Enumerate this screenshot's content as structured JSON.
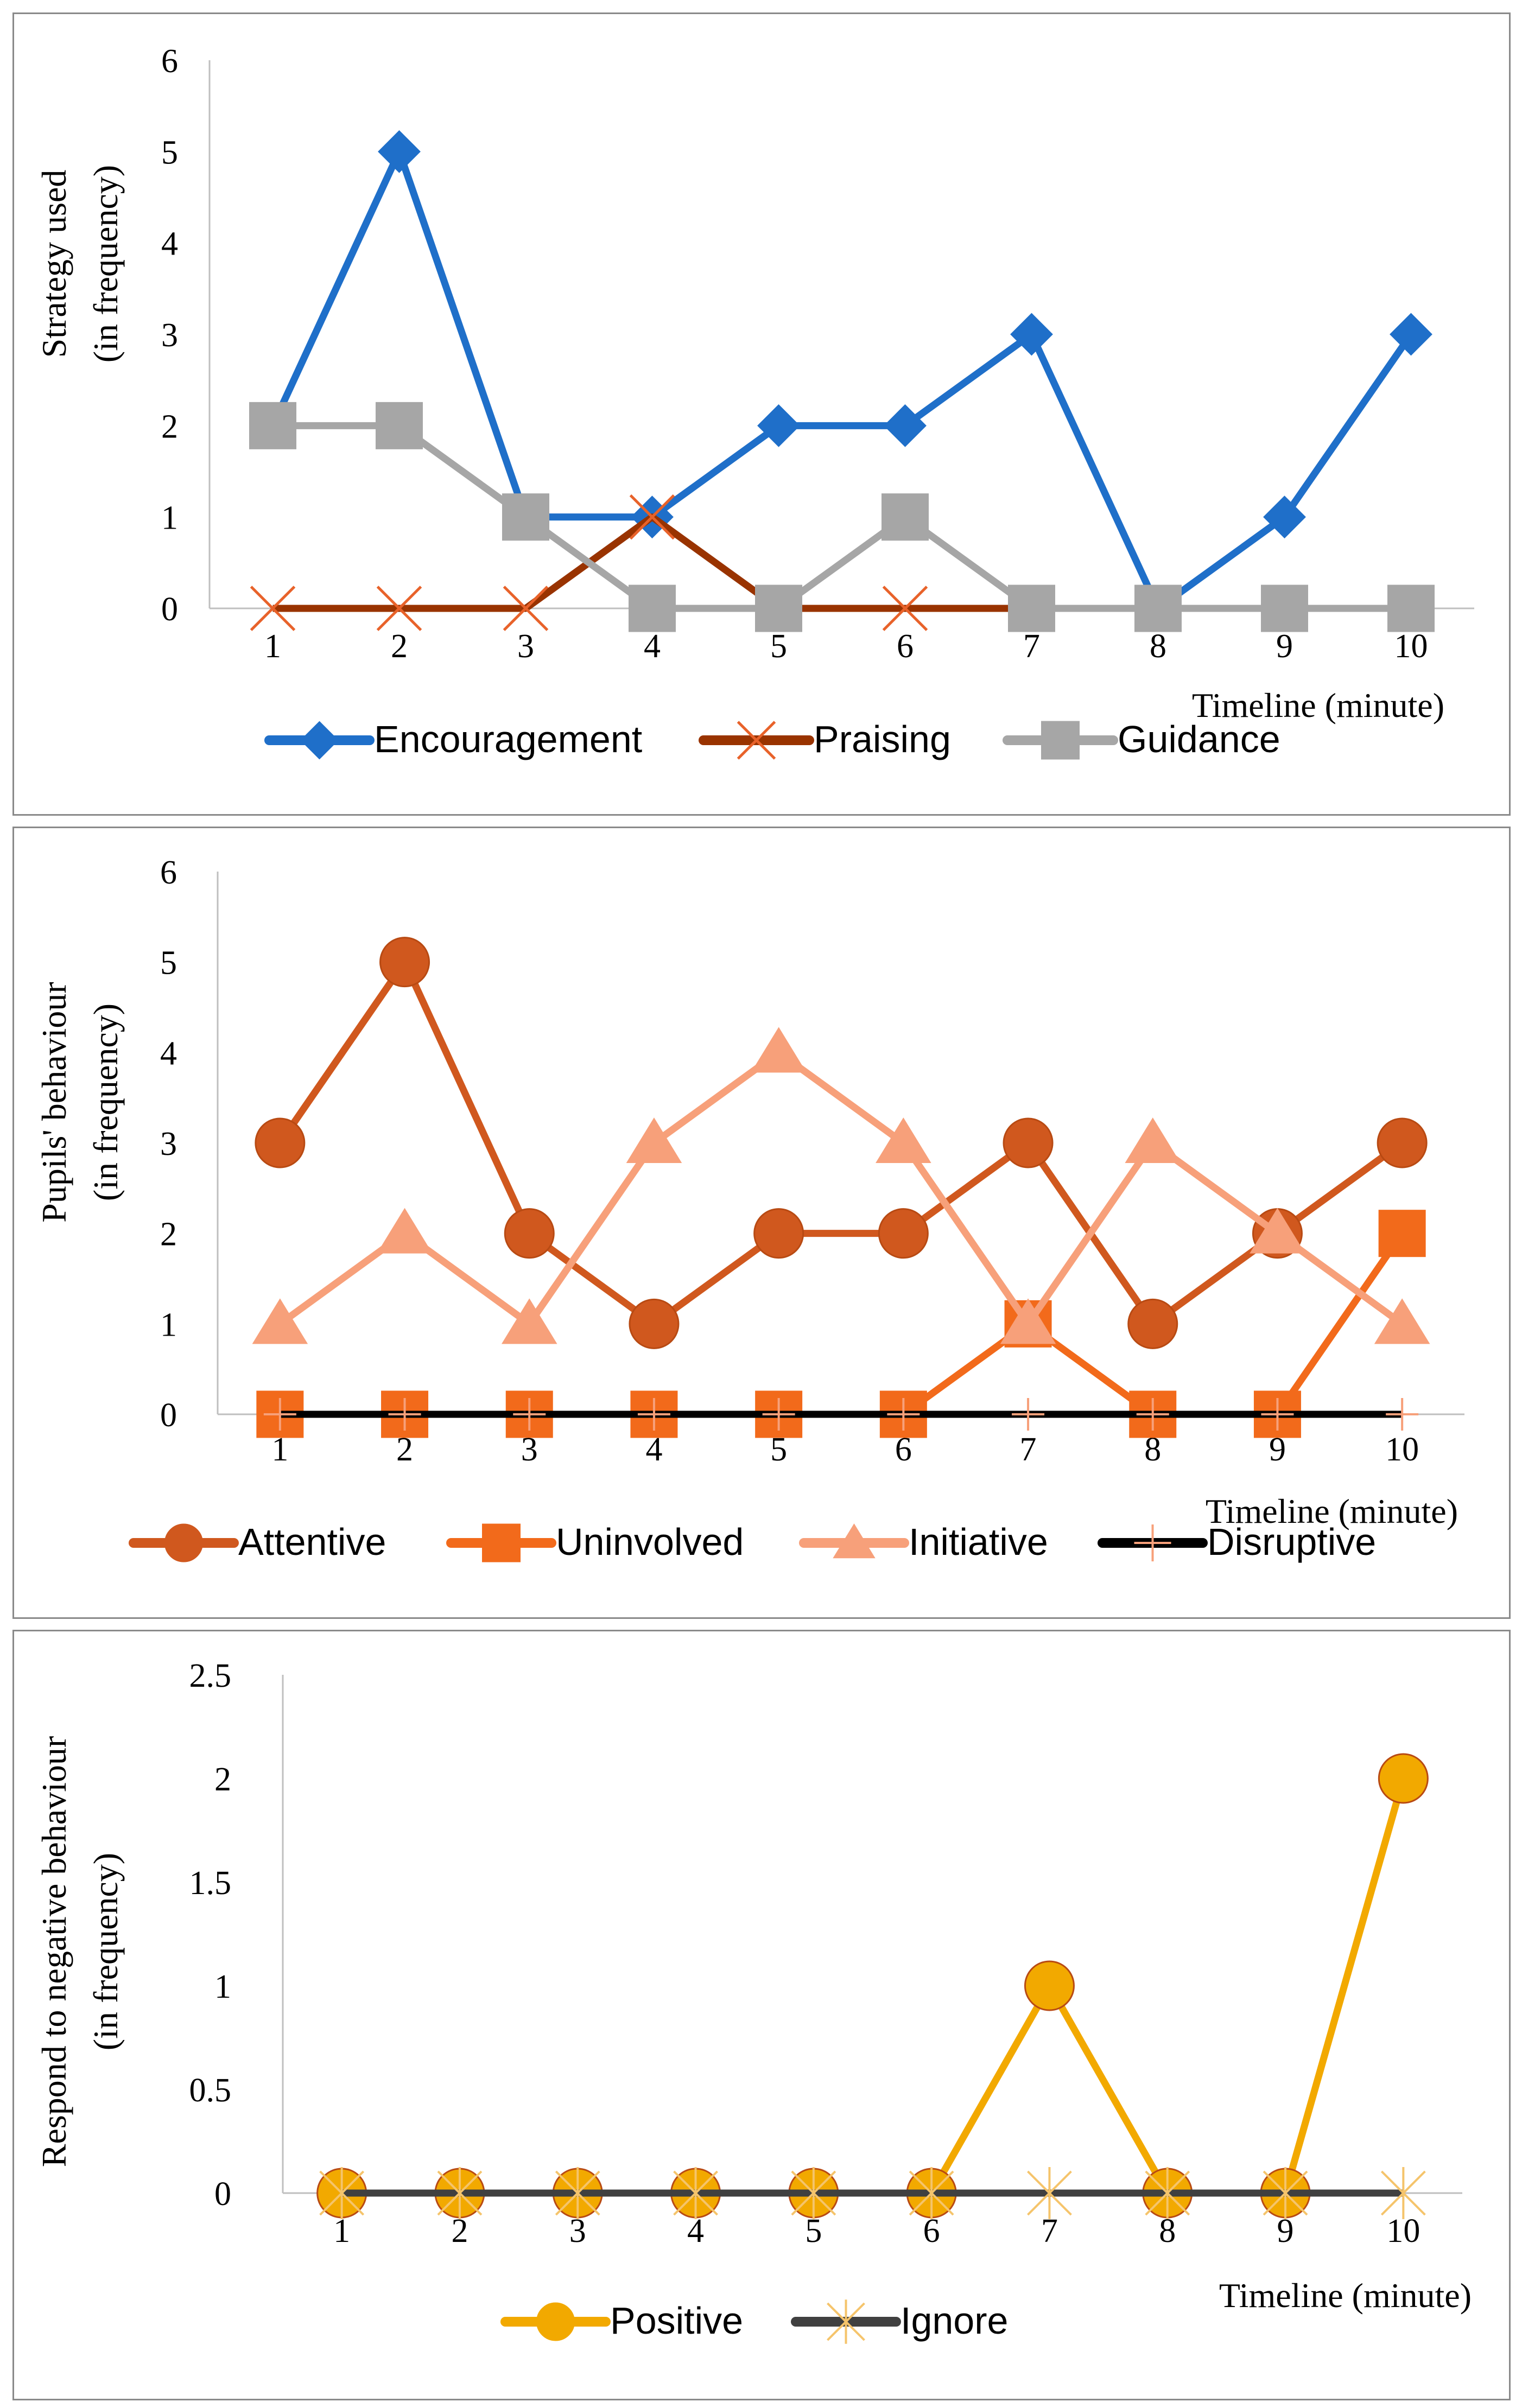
{
  "chart_data": [
    {
      "type": "line",
      "ylabel": [
        "Strategy used",
        "(in frequency)"
      ],
      "xlabel": "Timeline (minute)",
      "categories": [
        "1",
        "2",
        "3",
        "4",
        "5",
        "6",
        "7",
        "8",
        "9",
        "10"
      ],
      "ylim": [
        0,
        6
      ],
      "yticks": [
        "0",
        "1",
        "2",
        "3",
        "4",
        "5",
        "6"
      ],
      "grid": false,
      "legend": "bottom",
      "series": [
        {
          "name": "Encouragement",
          "values": [
            2,
            5,
            1,
            1,
            2,
            2,
            3,
            0,
            1,
            3
          ],
          "color": "#1f6fc9",
          "marker": "diamond"
        },
        {
          "name": "Praising",
          "values": [
            0,
            0,
            0,
            1,
            0,
            0,
            0,
            0,
            0,
            0
          ],
          "color": "#993300",
          "marker": "x",
          "marker_color": "#e8622a"
        },
        {
          "name": "Guidance",
          "values": [
            2,
            2,
            1,
            0,
            0,
            1,
            0,
            0,
            0,
            0
          ],
          "color": "#a6a6a6",
          "marker": "square"
        }
      ]
    },
    {
      "type": "line",
      "ylabel": [
        "Pupils' behaviour",
        "(in frequency)"
      ],
      "xlabel": "Timeline (minute)",
      "categories": [
        "1",
        "2",
        "3",
        "4",
        "5",
        "6",
        "7",
        "8",
        "9",
        "10"
      ],
      "ylim": [
        0,
        6
      ],
      "yticks": [
        "0",
        "1",
        "2",
        "3",
        "4",
        "5",
        "6"
      ],
      "grid": false,
      "legend": "bottom",
      "series": [
        {
          "name": "Attentive",
          "values": [
            3,
            5,
            2,
            1,
            2,
            2,
            3,
            1,
            2,
            3
          ],
          "color": "#d0581e",
          "marker": "circle"
        },
        {
          "name": "Uninvolved",
          "values": [
            0,
            0,
            0,
            0,
            0,
            0,
            1,
            0,
            0,
            2
          ],
          "color": "#f26a1b",
          "marker": "square"
        },
        {
          "name": "Initiative",
          "values": [
            1,
            2,
            1,
            3,
            4,
            3,
            1,
            3,
            2,
            1
          ],
          "color": "#f7a07a",
          "marker": "triangle"
        },
        {
          "name": "Disruptive",
          "values": [
            0,
            0,
            0,
            0,
            0,
            0,
            0,
            0,
            0,
            0
          ],
          "color": "#000000",
          "marker": "plus",
          "marker_color": "#f7a07a"
        }
      ]
    },
    {
      "type": "line",
      "ylabel": [
        "Respond to negative behaviour",
        "(in frequency)"
      ],
      "xlabel": "Timeline (minute)",
      "categories": [
        "1",
        "2",
        "3",
        "4",
        "5",
        "6",
        "7",
        "8",
        "9",
        "10"
      ],
      "ylim": [
        0,
        2.5
      ],
      "yticks": [
        "0",
        "0.5",
        "1",
        "1.5",
        "2",
        "2.5"
      ],
      "grid": false,
      "legend": "bottom",
      "series": [
        {
          "name": "Positive",
          "values": [
            0,
            0,
            0,
            0,
            0,
            0,
            1,
            0,
            0,
            2
          ],
          "color": "#f2a900",
          "marker": "circle"
        },
        {
          "name": "Ignore",
          "values": [
            0,
            0,
            0,
            0,
            0,
            0,
            0,
            0,
            0,
            0
          ],
          "color": "#404040",
          "marker": "asterisk",
          "marker_color": "#f5c46b"
        }
      ]
    }
  ]
}
